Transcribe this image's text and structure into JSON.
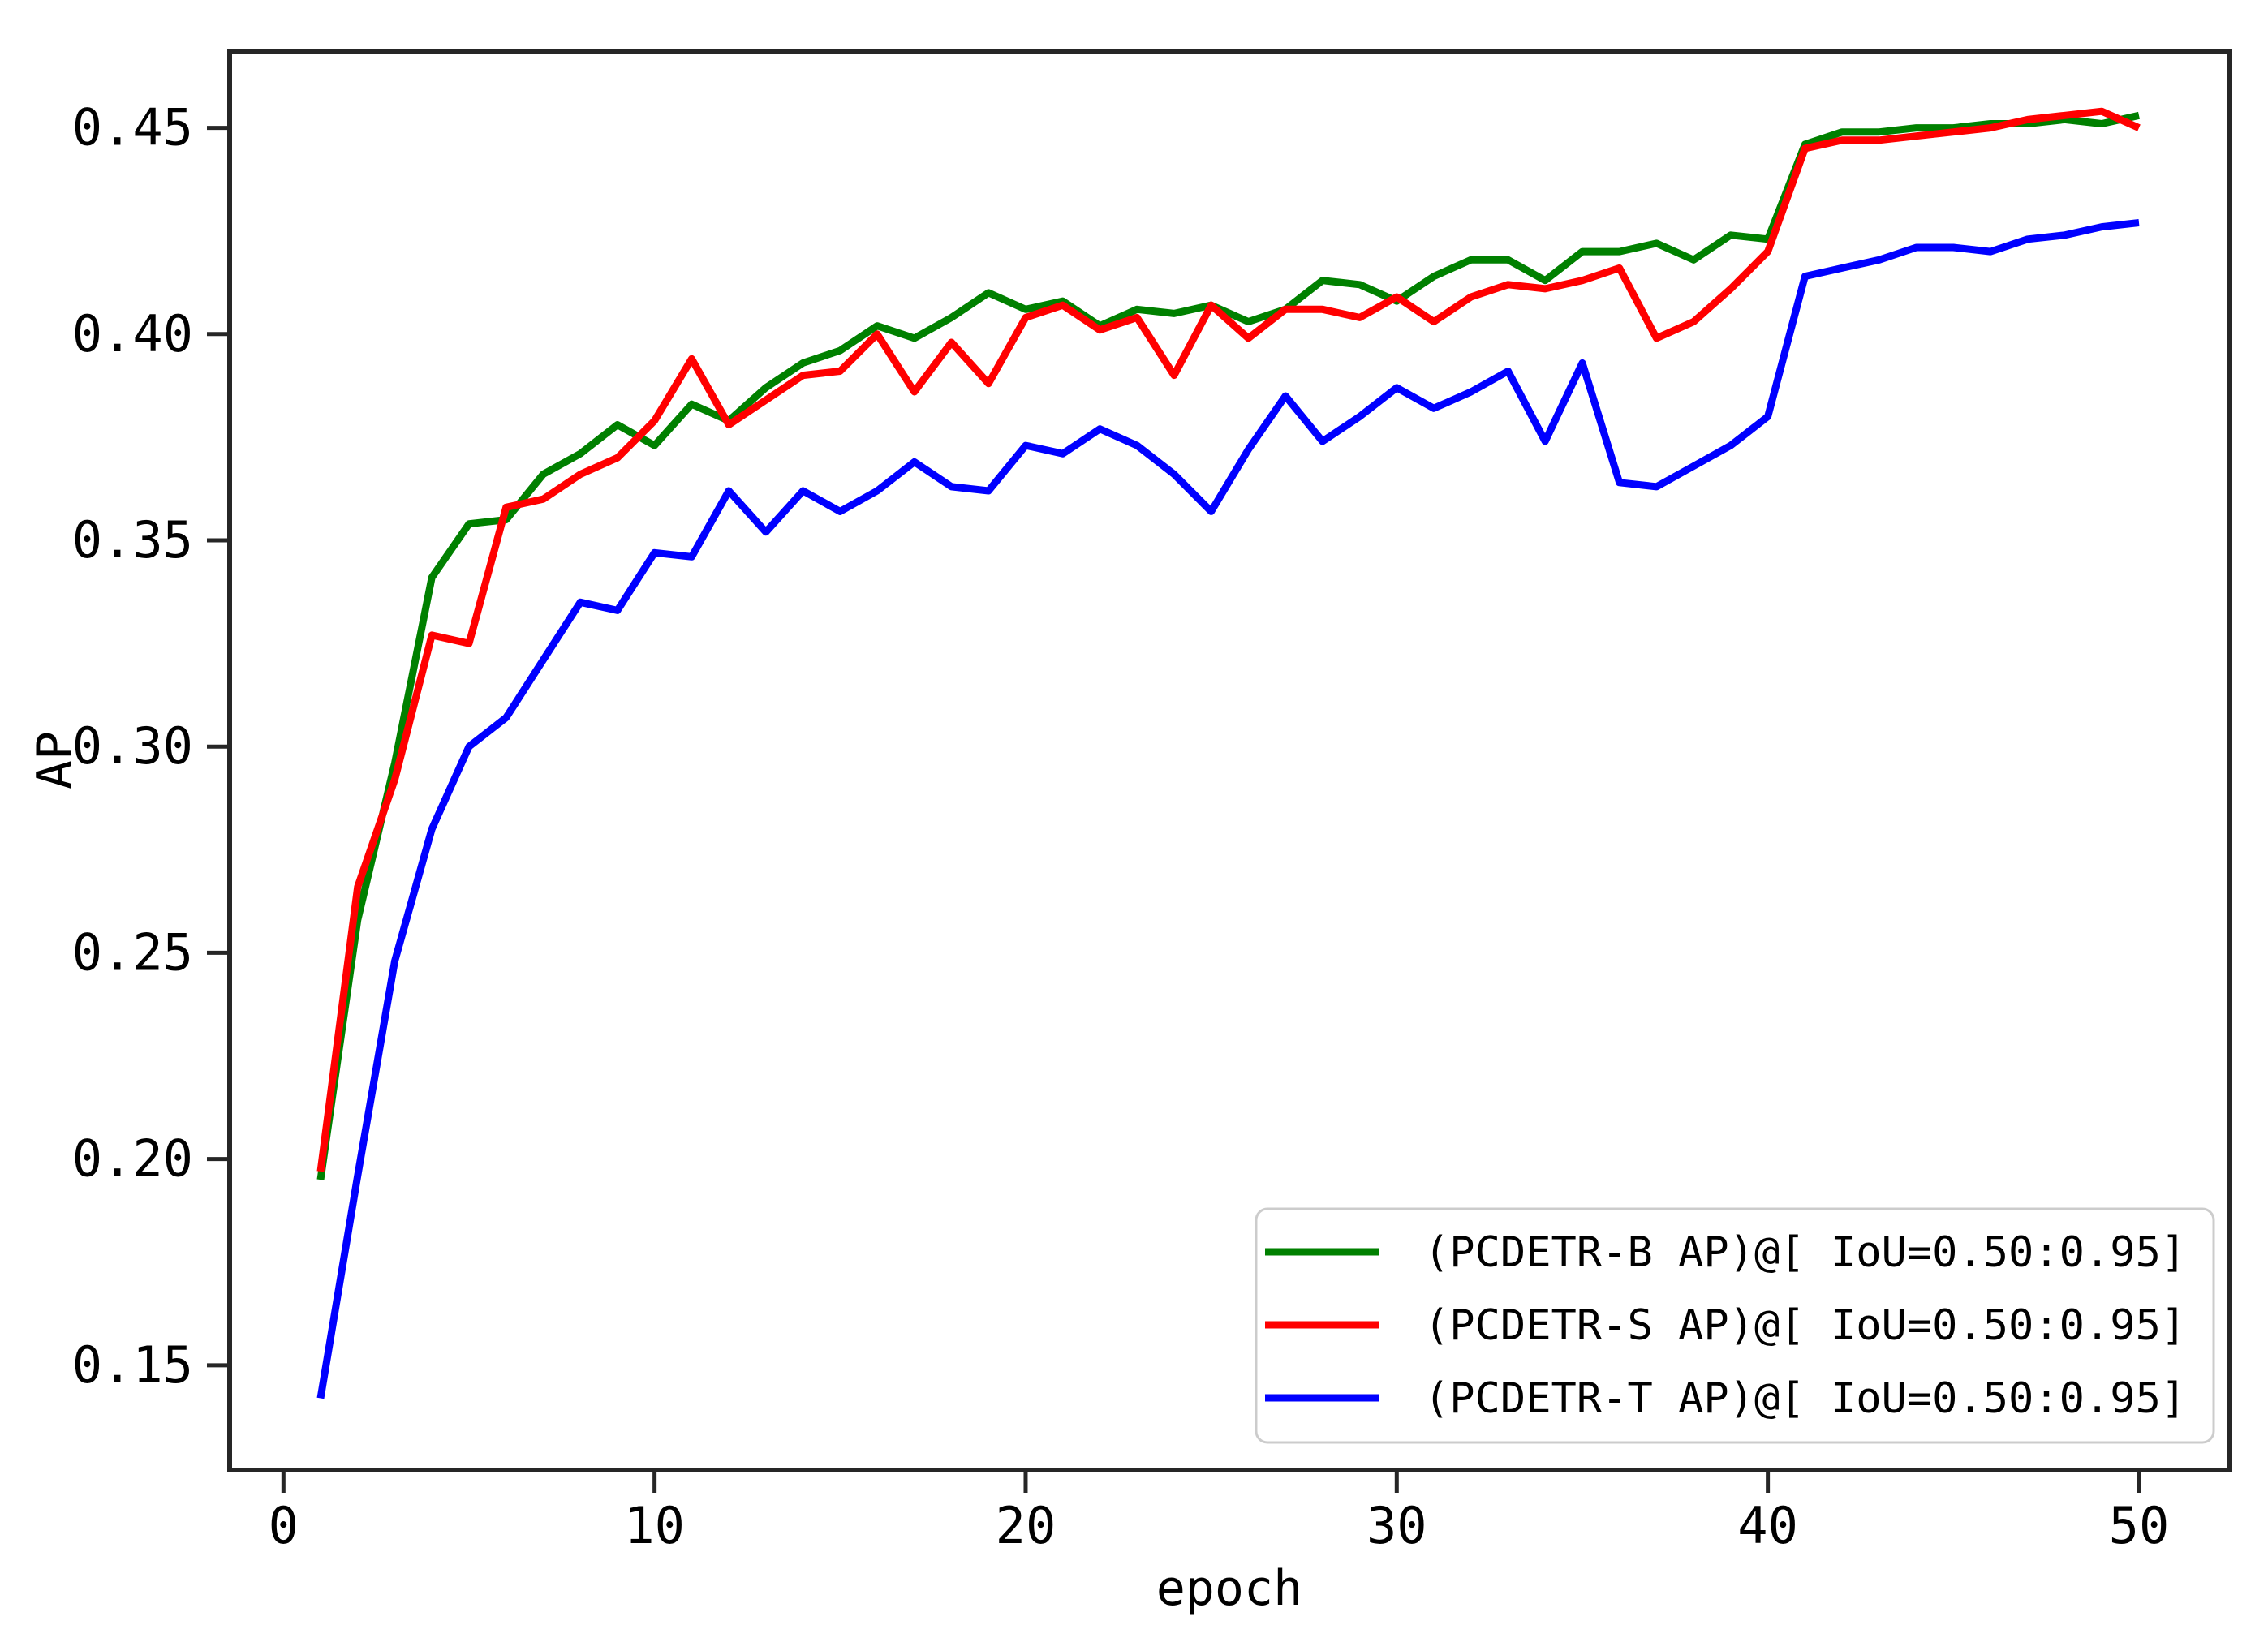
{
  "chart_data": {
    "type": "line",
    "title": "",
    "xlabel": "epoch",
    "ylabel": "AP",
    "x_start": 1,
    "x_step": 1,
    "xlim": [
      -1.45,
      52.45
    ],
    "ylim": [
      0.1246,
      0.4686
    ],
    "xticks": [
      "0",
      "10",
      "20",
      "30",
      "40",
      "50"
    ],
    "xtick_values": [
      0,
      10,
      20,
      30,
      40,
      50
    ],
    "yticks": [
      "0.15",
      "0.20",
      "0.25",
      "0.30",
      "0.35",
      "0.40",
      "0.45"
    ],
    "ytick_values": [
      0.15,
      0.2,
      0.25,
      0.3,
      0.35,
      0.4,
      0.45
    ],
    "grid": false,
    "legend_position": "lower right",
    "series": [
      {
        "name": "(PCDETR-B AP)@[ IoU=0.50:0.95]",
        "color": "#008000",
        "values": [
          0.195,
          0.258,
          0.296,
          0.341,
          0.354,
          0.355,
          0.366,
          0.371,
          0.378,
          0.373,
          0.383,
          0.379,
          0.387,
          0.393,
          0.396,
          0.402,
          0.399,
          0.404,
          0.41,
          0.406,
          0.408,
          0.402,
          0.406,
          0.405,
          0.407,
          0.403,
          0.406,
          0.413,
          0.412,
          0.408,
          0.414,
          0.418,
          0.418,
          0.413,
          0.42,
          0.42,
          0.422,
          0.418,
          0.424,
          0.423,
          0.446,
          0.449,
          0.449,
          0.45,
          0.45,
          0.451,
          0.451,
          0.452,
          0.451,
          0.453
        ]
      },
      {
        "name": "(PCDETR-S AP)@[ IoU=0.50:0.95]",
        "color": "#ff0000",
        "values": [
          0.197,
          0.266,
          0.292,
          0.327,
          0.325,
          0.358,
          0.36,
          0.366,
          0.37,
          0.379,
          0.394,
          0.378,
          0.384,
          0.39,
          0.391,
          0.4,
          0.386,
          0.398,
          0.388,
          0.404,
          0.407,
          0.401,
          0.404,
          0.39,
          0.407,
          0.399,
          0.406,
          0.406,
          0.404,
          0.409,
          0.403,
          0.409,
          0.412,
          0.411,
          0.413,
          0.416,
          0.399,
          0.403,
          0.411,
          0.42,
          0.445,
          0.447,
          0.447,
          0.448,
          0.449,
          0.45,
          0.452,
          0.453,
          0.454,
          0.45
        ]
      },
      {
        "name": "(PCDETR-T AP)@[ IoU=0.50:0.95]",
        "color": "#0000ff",
        "values": [
          0.142,
          0.196,
          0.248,
          0.28,
          0.3,
          0.307,
          0.321,
          0.335,
          0.333,
          0.347,
          0.346,
          0.362,
          0.352,
          0.362,
          0.357,
          0.362,
          0.369,
          0.363,
          0.362,
          0.373,
          0.371,
          0.377,
          0.373,
          0.366,
          0.357,
          0.372,
          0.385,
          0.374,
          0.38,
          0.387,
          0.382,
          0.386,
          0.391,
          0.374,
          0.393,
          0.364,
          0.363,
          0.368,
          0.373,
          0.38,
          0.414,
          0.416,
          0.418,
          0.421,
          0.421,
          0.42,
          0.423,
          0.424,
          0.426,
          0.427
        ]
      }
    ]
  }
}
